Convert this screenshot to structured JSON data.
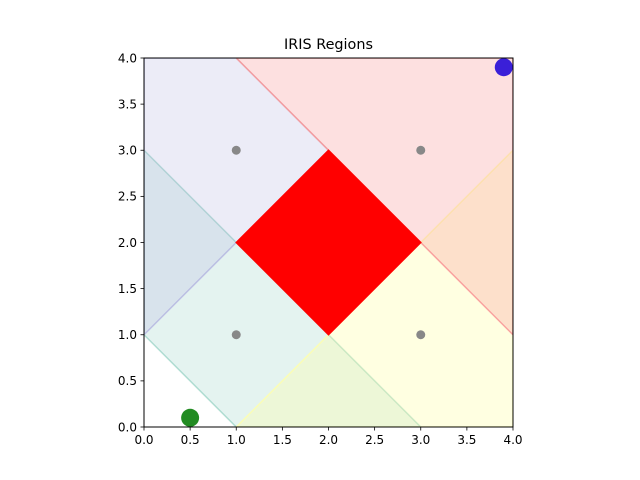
{
  "chart_data": {
    "type": "region-map",
    "title": "IRIS Regions",
    "xlabel": "",
    "ylabel": "",
    "xlim": [
      0.0,
      4.0
    ],
    "ylim": [
      0.0,
      4.0
    ],
    "x_ticks": [
      "0.0",
      "0.5",
      "1.0",
      "1.5",
      "2.0",
      "2.5",
      "3.0",
      "3.5",
      "4.0"
    ],
    "y_ticks": [
      "0.0",
      "0.5",
      "1.0",
      "1.5",
      "2.0",
      "2.5",
      "3.0",
      "3.5",
      "4.0"
    ],
    "grid": false,
    "regions": [
      {
        "id": "region-bottom-left",
        "polygon": [
          [
            0,
            1
          ],
          [
            1,
            0
          ],
          [
            3,
            0
          ],
          [
            2,
            1
          ],
          [
            1,
            2
          ],
          [
            0,
            3
          ]
        ],
        "color": "#9ed4c8",
        "fill_opacity": 0.28,
        "edge_opacity": 0.8
      },
      {
        "id": "region-top-left",
        "polygon": [
          [
            0,
            1
          ],
          [
            1,
            2
          ],
          [
            2,
            3
          ],
          [
            1,
            4
          ],
          [
            0,
            4
          ]
        ],
        "color": "#b3b3e0",
        "fill_opacity": 0.25,
        "edge_opacity": 0.8
      },
      {
        "id": "region-bottom-right",
        "polygon": [
          [
            1,
            0
          ],
          [
            4,
            0
          ],
          [
            4,
            3
          ],
          [
            3,
            2
          ],
          [
            2,
            1
          ]
        ],
        "color": "#ffffaa",
        "fill_opacity": 0.35,
        "edge_opacity": 0.8
      },
      {
        "id": "region-top-right",
        "polygon": [
          [
            1,
            4
          ],
          [
            4,
            4
          ],
          [
            4,
            1
          ],
          [
            3,
            2
          ],
          [
            2,
            3
          ]
        ],
        "color": "#f89898",
        "fill_opacity": 0.3,
        "edge_opacity": 0.9
      },
      {
        "id": "region-center",
        "polygon": [
          [
            1,
            2
          ],
          [
            2,
            3
          ],
          [
            3,
            2
          ],
          [
            2,
            1
          ]
        ],
        "color": "#ff0000",
        "fill_opacity": 1.0,
        "edge_opacity": 1.0
      }
    ],
    "region_centers": {
      "color": "#888888",
      "points": [
        [
          1,
          3
        ],
        [
          3,
          3
        ],
        [
          1,
          1
        ],
        [
          3,
          1
        ]
      ]
    },
    "markers": [
      {
        "id": "start-point",
        "x": 0.5,
        "y": 0.1,
        "color": "#228b22"
      },
      {
        "id": "goal-point",
        "x": 3.9,
        "y": 3.9,
        "color": "#3a1fd8"
      }
    ]
  }
}
